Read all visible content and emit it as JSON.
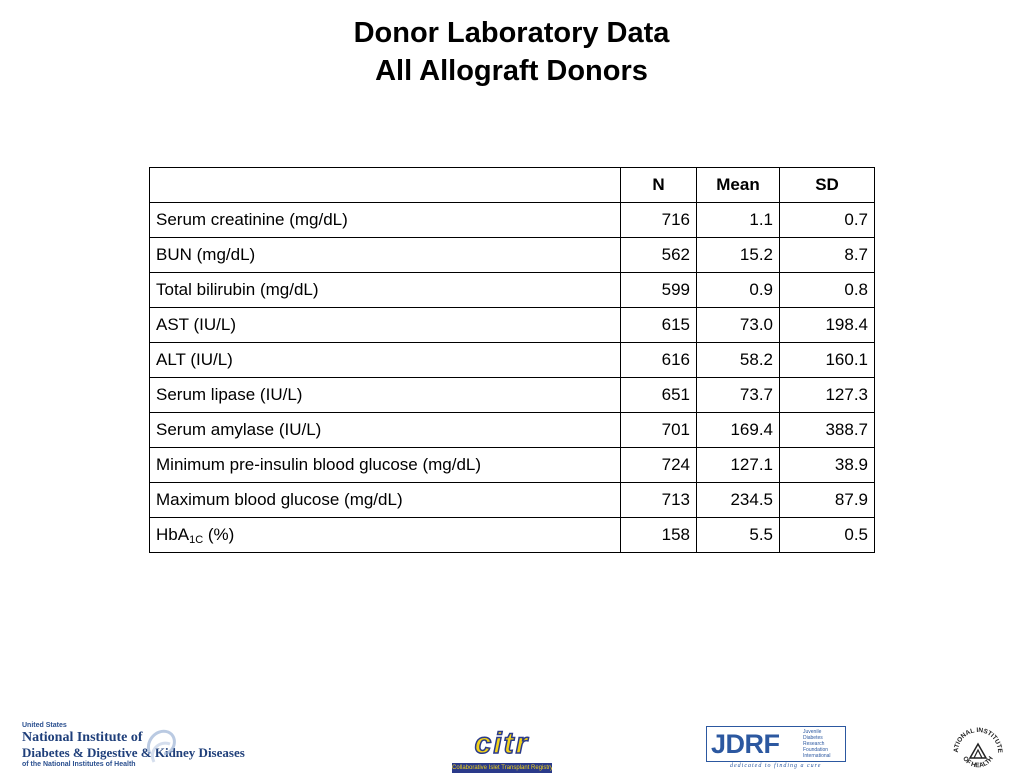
{
  "title": {
    "line1": "Donor Laboratory Data",
    "line2": "All Allograft Donors"
  },
  "table": {
    "headers": [
      "",
      "N",
      "Mean",
      "SD"
    ],
    "rows": [
      {
        "label": "Serum creatinine (mg/dL)",
        "n": "716",
        "mean": "1.1",
        "sd": "0.7"
      },
      {
        "label": "BUN (mg/dL)",
        "n": "562",
        "mean": "15.2",
        "sd": "8.7"
      },
      {
        "label": "Total bilirubin (mg/dL)",
        "n": "599",
        "mean": "0.9",
        "sd": "0.8"
      },
      {
        "label": "AST (IU/L)",
        "n": "615",
        "mean": "73.0",
        "sd": "198.4"
      },
      {
        "label": "ALT (IU/L)",
        "n": "616",
        "mean": "58.2",
        "sd": "160.1"
      },
      {
        "label": "Serum lipase (IU/L)",
        "n": "651",
        "mean": "73.7",
        "sd": "127.3"
      },
      {
        "label": "Serum amylase (IU/L)",
        "n": "701",
        "mean": "169.4",
        "sd": "388.7"
      },
      {
        "label": "Minimum pre-insulin blood glucose (mg/dL)",
        "n": "724",
        "mean": "127.1",
        "sd": "38.9"
      },
      {
        "label": "Maximum blood glucose (mg/dL)",
        "n": "713",
        "mean": "234.5",
        "sd": "87.9"
      },
      {
        "label_main": "HbA",
        "label_sub": "1C",
        "label_suffix": " (%)",
        "n": "158",
        "mean": "5.5",
        "sd": "0.5"
      }
    ]
  },
  "footer": {
    "niddk": {
      "line1": "United States",
      "line2": "National Institute of",
      "line3": "Diabetes & Digestive & Kidney Diseases",
      "line4": "of the National Institutes of Health"
    },
    "citr": {
      "word": "citr",
      "tagline": "Collaborative Islet Transplant Registry"
    },
    "jdrf": {
      "word": "JDRF",
      "sub": [
        "Juvenile",
        "Diabetes",
        "Research",
        "Foundation",
        "International"
      ],
      "tagline": "dedicated to finding a cure"
    },
    "nih": {
      "top": "NATIONAL INSTITUTES",
      "bottom": "OF HEALTH"
    }
  },
  "colors": {
    "niddk_blue": "#1f3f7a",
    "citr_yellow": "#f2d21a",
    "citr_navy": "#2a3a8a",
    "jdrf_blue": "#2c58a0"
  }
}
